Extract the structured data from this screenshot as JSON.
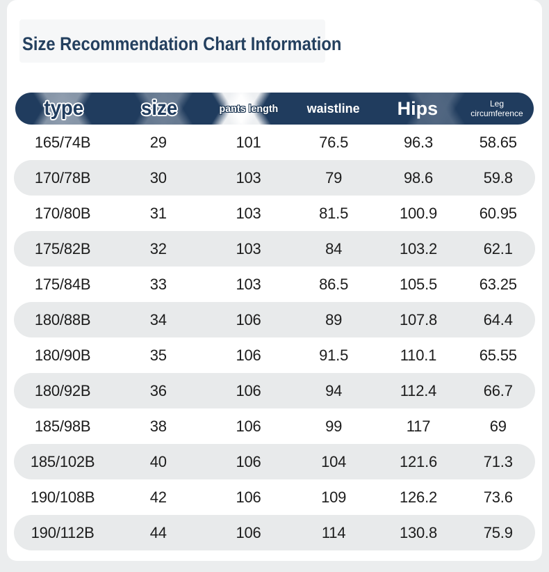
{
  "page": {
    "title": "Size Recommendation Chart Information"
  },
  "colors": {
    "page_bg": "#ebedee",
    "card_bg": "#ffffff",
    "title_navy": "#24405f",
    "header_navy": "#203c5e",
    "row_alt": "#e8eaeb",
    "cell_text": "#1c1c1c"
  },
  "table": {
    "columns": [
      {
        "key": "type",
        "label": "type"
      },
      {
        "key": "size",
        "label": "size"
      },
      {
        "key": "pants-length",
        "label": "pants length"
      },
      {
        "key": "waistline",
        "label": "waistline"
      },
      {
        "key": "hips",
        "label": "Hips"
      },
      {
        "key": "leg-circumference",
        "label": "Leg circumference"
      }
    ],
    "rows": [
      [
        "165/74B",
        "29",
        "101",
        "76.5",
        "96.3",
        "58.65"
      ],
      [
        "170/78B",
        "30",
        "103",
        "79",
        "98.6",
        "59.8"
      ],
      [
        "170/80B",
        "31",
        "103",
        "81.5",
        "100.9",
        "60.95"
      ],
      [
        "175/82B",
        "32",
        "103",
        "84",
        "103.2",
        "62.1"
      ],
      [
        "175/84B",
        "33",
        "103",
        "86.5",
        "105.5",
        "63.25"
      ],
      [
        "180/88B",
        "34",
        "106",
        "89",
        "107.8",
        "64.4"
      ],
      [
        "180/90B",
        "35",
        "106",
        "91.5",
        "110.1",
        "65.55"
      ],
      [
        "180/92B",
        "36",
        "106",
        "94",
        "112.4",
        "66.7"
      ],
      [
        "185/98B",
        "38",
        "106",
        "99",
        "117",
        "69"
      ],
      [
        "185/102B",
        "40",
        "106",
        "104",
        "121.6",
        "71.3"
      ],
      [
        "190/108B",
        "42",
        "106",
        "109",
        "126.2",
        "73.6"
      ],
      [
        "190/112B",
        "44",
        "106",
        "114",
        "130.8",
        "75.9"
      ]
    ]
  }
}
